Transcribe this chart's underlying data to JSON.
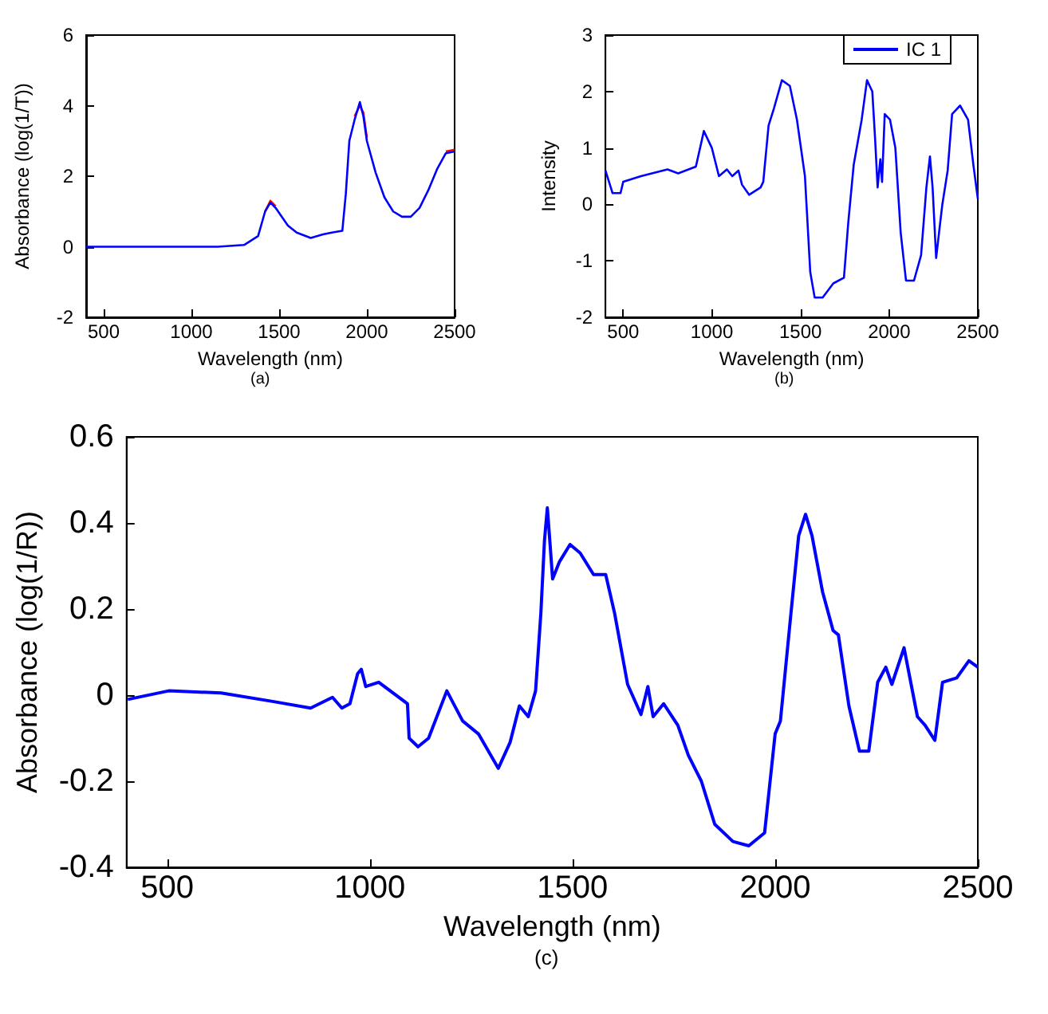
{
  "chart_data": [
    {
      "type": "line",
      "xlabel": "Wavelength (nm)",
      "ylabel": "Absorbance (log(1/T))",
      "annotations": [
        "(a)"
      ],
      "xlim": [
        400,
        2500
      ],
      "xticks": [
        500,
        1000,
        1500,
        2000,
        2500
      ],
      "ylim": [
        -2,
        6
      ],
      "yticks": [
        -2,
        0,
        2,
        4,
        6
      ],
      "grid": false,
      "legend": false,
      "marker": "none",
      "line_style": "solid",
      "x": [
        400,
        1150,
        1300,
        1380,
        1420,
        1450,
        1480,
        1550,
        1600,
        1680,
        1750,
        1800,
        1860,
        1880,
        1900,
        1930,
        1960,
        1980,
        2000,
        2050,
        2100,
        2150,
        2200,
        2250,
        2300,
        2350,
        2400,
        2450,
        2500
      ],
      "series": [
        {
          "color": "#ff0000",
          "values": [
            null,
            null,
            null,
            null,
            1.0,
            1.3,
            1.15,
            null,
            null,
            null,
            null,
            null,
            null,
            null,
            null,
            3.7,
            4.0,
            3.8,
            3.1,
            null,
            null,
            null,
            null,
            null,
            null,
            null,
            null,
            2.7,
            2.75
          ]
        },
        {
          "color": "#0000ff",
          "values": [
            0,
            0,
            0.05,
            0.3,
            1.0,
            1.25,
            1.1,
            0.6,
            0.4,
            0.25,
            0.35,
            0.4,
            0.45,
            1.5,
            3.0,
            3.6,
            4.1,
            3.7,
            3.0,
            2.1,
            1.4,
            1.0,
            0.85,
            0.85,
            1.1,
            1.6,
            2.2,
            2.65,
            2.7
          ]
        }
      ]
    },
    {
      "type": "line",
      "xlabel": "Wavelength (nm)",
      "ylabel": "Intensity",
      "annotations": [
        "(b)"
      ],
      "xlim": [
        400,
        2500
      ],
      "xticks": [
        500,
        1000,
        1500,
        2000,
        2500
      ],
      "ylim": [
        -2,
        3
      ],
      "yticks": [
        -2,
        -1,
        0,
        1,
        2,
        3
      ],
      "grid": false,
      "legend": "top right",
      "marker": "none",
      "line_style": "solid",
      "x": [
        400,
        440,
        485,
        500,
        600,
        750,
        810,
        910,
        955,
        1000,
        1040,
        1085,
        1115,
        1150,
        1170,
        1210,
        1275,
        1290,
        1320,
        1350,
        1395,
        1440,
        1480,
        1525,
        1555,
        1580,
        1625,
        1685,
        1745,
        1770,
        1800,
        1845,
        1875,
        1905,
        1920,
        1935,
        1950,
        1960,
        1975,
        2005,
        2035,
        2065,
        2095,
        2140,
        2180,
        2210,
        2230,
        2245,
        2265,
        2285,
        2300,
        2330,
        2355,
        2400,
        2445,
        2475,
        2500
      ],
      "series": [
        {
          "name": "IC 1",
          "color": "#0000ff",
          "values": [
            0.6,
            0.2,
            0.2,
            0.4,
            0.5,
            0.62,
            0.55,
            0.67,
            1.3,
            1.0,
            0.5,
            0.62,
            0.5,
            0.6,
            0.35,
            0.17,
            0.3,
            0.4,
            1.4,
            1.7,
            2.2,
            2.1,
            1.5,
            0.5,
            -1.2,
            -1.65,
            -1.65,
            -1.4,
            -1.3,
            -0.3,
            0.7,
            1.5,
            2.2,
            2.0,
            1.2,
            0.3,
            0.8,
            0.4,
            1.6,
            1.5,
            1.0,
            -0.5,
            -1.35,
            -1.35,
            -0.9,
            0.3,
            0.85,
            0.3,
            -0.95,
            -0.4,
            0.0,
            0.6,
            1.6,
            1.75,
            1.5,
            0.7,
            0.1
          ]
        }
      ]
    },
    {
      "type": "line",
      "xlabel": "Wavelength (nm)",
      "ylabel": "Absorbance (log(1/R))",
      "annotations": [
        "(c)"
      ],
      "xlim": [
        400,
        2500
      ],
      "xticks": [
        500,
        1000,
        1500,
        2000,
        2500
      ],
      "ylim": [
        -0.4,
        0.6
      ],
      "yticks": [
        -0.4,
        -0.2,
        0,
        0.2,
        0.4,
        0.6
      ],
      "grid": false,
      "legend": false,
      "marker": "none",
      "line_style": "solid",
      "x": [
        403,
        504,
        633,
        763,
        854,
        908,
        931,
        951,
        970,
        979,
        990,
        1022,
        1093,
        1097,
        1119,
        1145,
        1190,
        1229,
        1268,
        1317,
        1346,
        1369,
        1391,
        1409,
        1422,
        1431,
        1438,
        1444,
        1451,
        1468,
        1494,
        1519,
        1552,
        1582,
        1604,
        1636,
        1669,
        1686,
        1699,
        1725,
        1760,
        1786,
        1818,
        1851,
        1896,
        1935,
        1974,
        2000,
        2013,
        2039,
        2058,
        2075,
        2091,
        2117,
        2143,
        2156,
        2182,
        2208,
        2231,
        2253,
        2273,
        2288,
        2318,
        2351,
        2370,
        2394,
        2413,
        2448,
        2478,
        2500
      ],
      "series": [
        {
          "color": "#0000ff",
          "values": [
            -0.01,
            0.01,
            0.005,
            -0.015,
            -0.03,
            -0.005,
            -0.03,
            -0.02,
            0.05,
            0.06,
            0.02,
            0.03,
            -0.02,
            -0.1,
            -0.12,
            -0.1,
            0.01,
            -0.06,
            -0.09,
            -0.17,
            -0.11,
            -0.025,
            -0.05,
            0.01,
            0.19,
            0.36,
            0.435,
            0.36,
            0.27,
            0.31,
            0.35,
            0.33,
            0.28,
            0.28,
            0.19,
            0.025,
            -0.045,
            0.02,
            -0.05,
            -0.02,
            -0.07,
            -0.14,
            -0.2,
            -0.3,
            -0.34,
            -0.35,
            -0.32,
            -0.09,
            -0.06,
            0.19,
            0.37,
            0.42,
            0.37,
            0.24,
            0.15,
            0.14,
            -0.025,
            -0.13,
            -0.13,
            0.03,
            0.065,
            0.025,
            0.11,
            -0.05,
            -0.07,
            -0.105,
            0.03,
            0.04,
            0.08,
            0.065
          ]
        }
      ]
    }
  ]
}
